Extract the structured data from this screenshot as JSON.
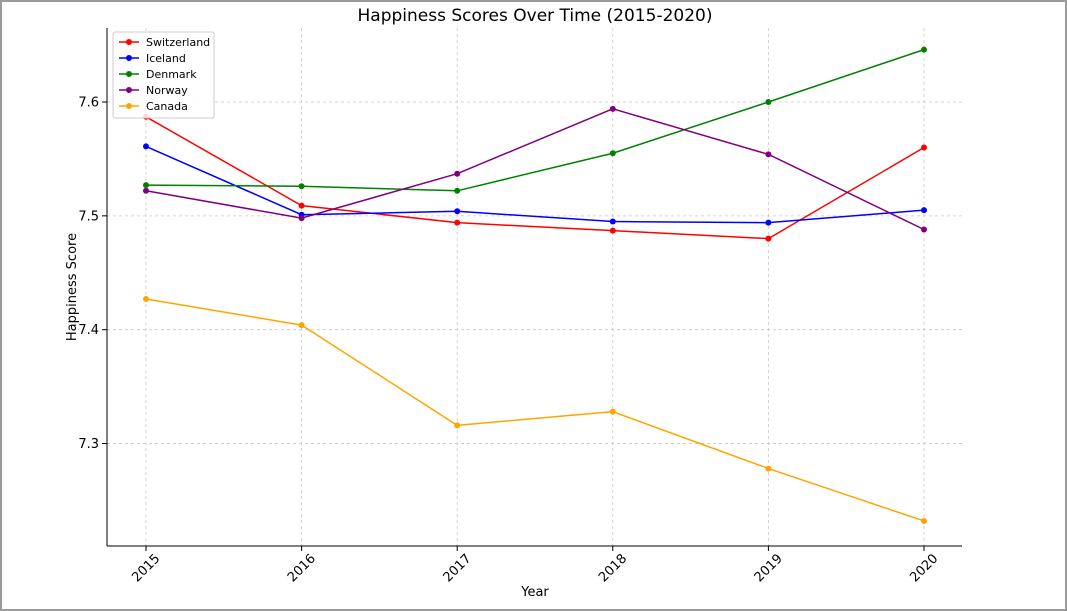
{
  "chart_data": {
    "type": "line",
    "title": "Happiness Scores Over Time (2015-2020)",
    "xlabel": "Year",
    "ylabel": "Happiness Score",
    "categories": [
      "2015",
      "2016",
      "2017",
      "2018",
      "2019",
      "2020"
    ],
    "y_ticks": [
      "7.3",
      "7.4",
      "7.5",
      "7.6"
    ],
    "ylim": [
      7.21,
      7.665
    ],
    "grid": true,
    "legend_position": "top-left",
    "series": [
      {
        "name": "Switzerland",
        "color": "#ff0000",
        "values": [
          7.587,
          7.509,
          7.494,
          7.487,
          7.48,
          7.56
        ]
      },
      {
        "name": "Iceland",
        "color": "#0000ff",
        "values": [
          7.561,
          7.501,
          7.504,
          7.495,
          7.494,
          7.505
        ]
      },
      {
        "name": "Denmark",
        "color": "#008000",
        "values": [
          7.527,
          7.526,
          7.522,
          7.555,
          7.6,
          7.646
        ]
      },
      {
        "name": "Norway",
        "color": "#800080",
        "values": [
          7.522,
          7.498,
          7.537,
          7.594,
          7.554,
          7.488
        ]
      },
      {
        "name": "Canada",
        "color": "#ffa500",
        "values": [
          7.427,
          7.404,
          7.316,
          7.328,
          7.278,
          7.232
        ]
      }
    ]
  }
}
